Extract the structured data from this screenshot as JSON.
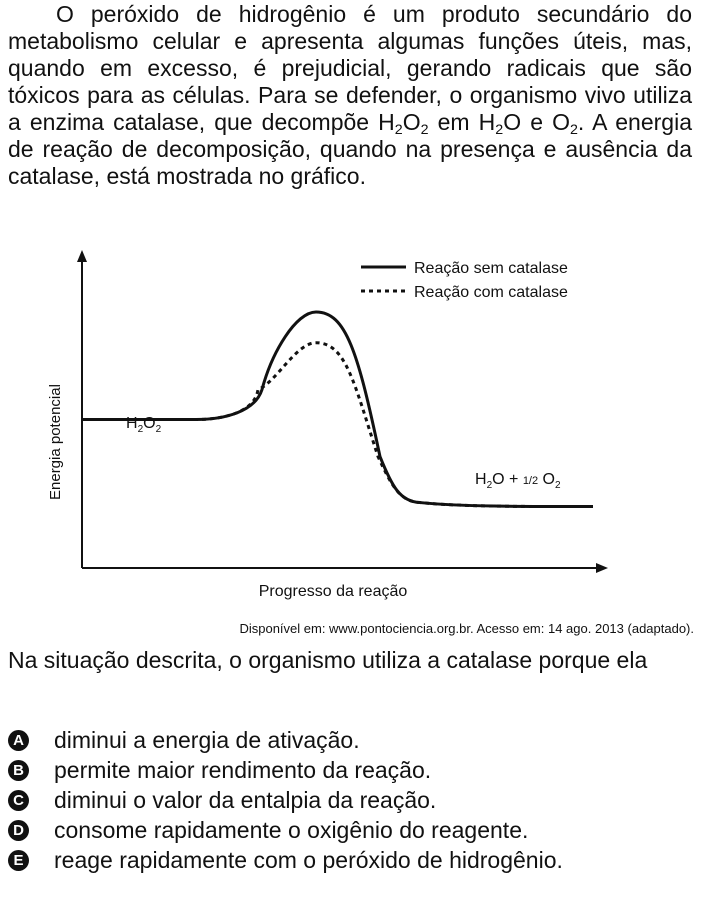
{
  "intro": {
    "line1": "O peróxido de hidrogênio é um produto secundário do metabolismo celular e apresenta algumas funções úteis, mas, quando em excesso, é prejudicial, gerando radicais que são tóxicos para as células. Para se defender, o organismo vivo utiliza a enzima catalase, que decompõe ",
    "h": "H",
    "two": "2",
    "o": "O",
    "em": " em ",
    "and": "O e ",
    "line_end": ". A energia de reação de decomposição, quando na presença e ausência da catalase, está mostrada no gráfico."
  },
  "chart_data": {
    "type": "line",
    "ylabel": "Energia potencial",
    "xlabel": "Progresso da reação",
    "legend_position": "top-right",
    "series": [
      {
        "name": "Reação sem catalase",
        "style": "solid",
        "start": 0.58,
        "peak": 1.0,
        "end": 0.24
      },
      {
        "name": "Reação com catalase",
        "style": "dotted",
        "start": 0.58,
        "peak": 0.88,
        "end": 0.24
      }
    ],
    "annotations": {
      "reactant_h": "H",
      "reactant_sub": "2",
      "reactant_o": "O",
      "product_h": "H",
      "product_sub": "2",
      "product_o": "O + ",
      "product_half": "1/2",
      "product_o2": "O"
    }
  },
  "source": "Disponível em: www.pontociencia.org.br.  Acesso em: 14 ago. 2013 (adaptado).",
  "question": "Na situação descrita, o organismo utiliza a catalase porque ela",
  "options": [
    {
      "letter": "A",
      "text": "diminui a energia de ativação."
    },
    {
      "letter": "B",
      "text": "permite maior rendimento da reação."
    },
    {
      "letter": "C",
      "text": "diminui o valor da entalpia da reação."
    },
    {
      "letter": "D",
      "text": "consome rapidamente o oxigênio do reagente."
    },
    {
      "letter": "E",
      "text": "reage rapidamente com o peróxido de hidrogênio."
    }
  ]
}
